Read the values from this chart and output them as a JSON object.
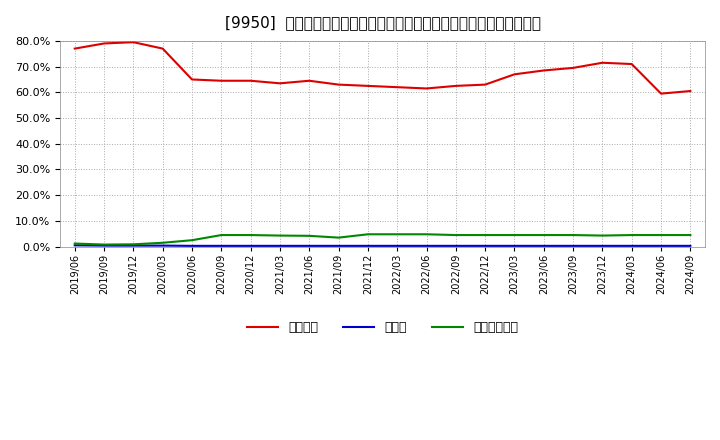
{
  "title": "[9950]  自己資本、のれん、繰延税金資産の総資産に対する比率の推移",
  "x_labels": [
    "2019/06",
    "2019/09",
    "2019/12",
    "2020/03",
    "2020/06",
    "2020/09",
    "2020/12",
    "2021/03",
    "2021/06",
    "2021/09",
    "2021/12",
    "2022/03",
    "2022/06",
    "2022/09",
    "2022/12",
    "2023/03",
    "2023/06",
    "2023/09",
    "2023/12",
    "2024/03",
    "2024/06",
    "2024/09"
  ],
  "jiko_shihon": [
    77.0,
    79.0,
    79.5,
    77.0,
    65.0,
    64.5,
    64.5,
    63.5,
    64.5,
    63.0,
    62.5,
    62.0,
    61.5,
    62.5,
    63.0,
    67.0,
    68.5,
    69.5,
    71.5,
    71.0,
    59.5,
    60.5
  ],
  "noren": [
    0.5,
    0.4,
    0.4,
    0.4,
    0.3,
    0.3,
    0.3,
    0.3,
    0.3,
    0.3,
    0.3,
    0.3,
    0.3,
    0.3,
    0.3,
    0.3,
    0.3,
    0.3,
    0.3,
    0.3,
    0.3,
    0.3
  ],
  "kurinobezekin": [
    1.2,
    0.8,
    0.9,
    1.5,
    2.5,
    4.5,
    4.5,
    4.3,
    4.2,
    3.5,
    4.8,
    4.8,
    4.8,
    4.5,
    4.5,
    4.5,
    4.5,
    4.5,
    4.3,
    4.5,
    4.5,
    4.5
  ],
  "line_colors": {
    "jiko_shihon": "#dd0000",
    "noren": "#0000cc",
    "kurinobezekin": "#008800"
  },
  "legend_labels": {
    "jiko_shihon": "自己資本",
    "noren": "のれん",
    "kurinobezekin": "繰延税金資産"
  },
  "ylim": [
    0.0,
    80.0
  ],
  "yticks": [
    0.0,
    10.0,
    20.0,
    30.0,
    40.0,
    50.0,
    60.0,
    70.0,
    80.0
  ],
  "background_color": "#ffffff",
  "grid_color": "#aaaaaa",
  "title_fontsize": 11
}
